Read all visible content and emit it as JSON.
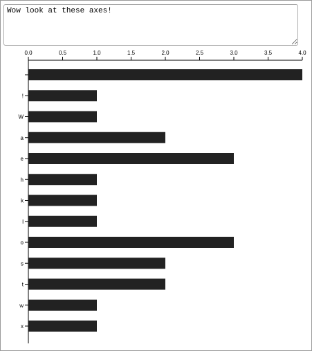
{
  "textarea": {
    "value": "Wow look at these axes!"
  },
  "chart_data": {
    "type": "bar",
    "orientation": "horizontal",
    "title": "",
    "xlabel": "",
    "ylabel": "",
    "xlim": [
      0,
      4
    ],
    "x_ticks": [
      "0.0",
      "0.5",
      "1.0",
      "1.5",
      "2.0",
      "2.5",
      "3.0",
      "3.5",
      "4.0"
    ],
    "x_axis_position": "top",
    "grid": false,
    "bar_color": "#222222",
    "categories": [
      " ",
      "!",
      "W",
      "a",
      "e",
      "h",
      "k",
      "l",
      "o",
      "s",
      "t",
      "w",
      "x"
    ],
    "values": [
      4,
      1,
      1,
      2,
      3,
      1,
      1,
      1,
      3,
      2,
      2,
      1,
      1
    ]
  }
}
